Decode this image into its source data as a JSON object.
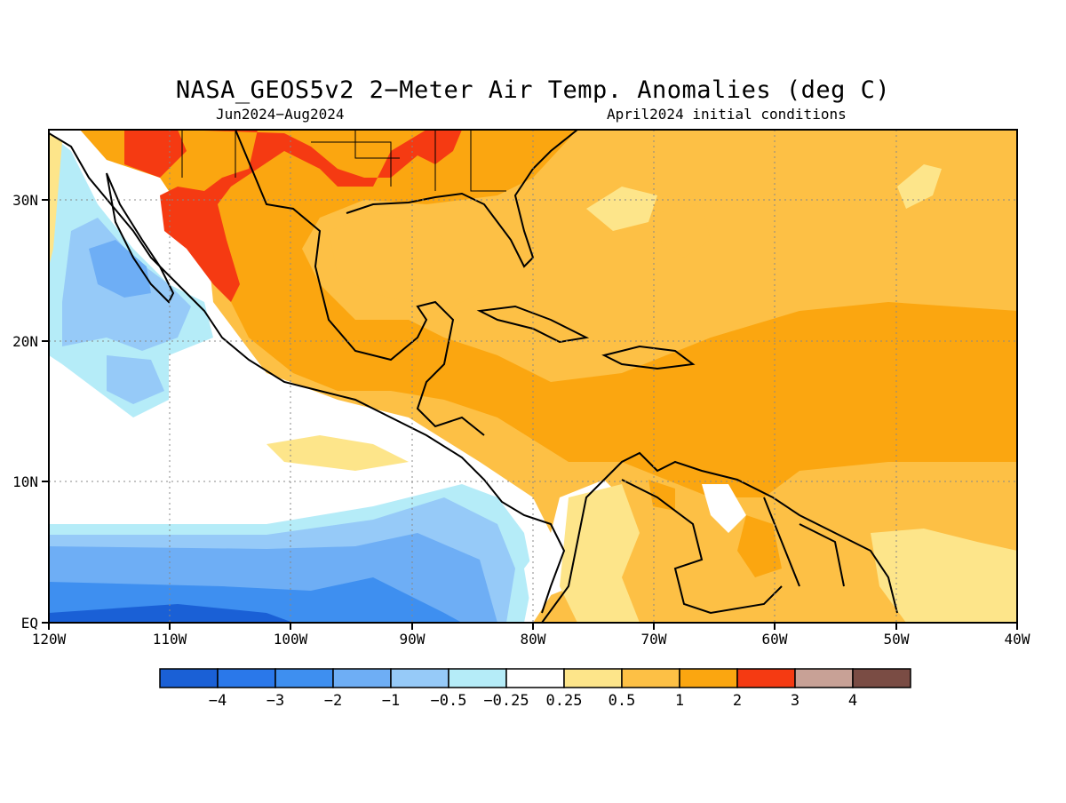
{
  "title": "NASA_GEOS5v2 2−Meter Air Temp. Anomalies (deg C)",
  "subtitle_left": "Jun2024−Aug2024",
  "subtitle_right": "April2024 initial conditions",
  "map": {
    "lon_range": [
      -120,
      -40
    ],
    "lat_range": [
      0,
      35
    ],
    "lon_ticks": [
      {
        "value": -120,
        "label": "120W"
      },
      {
        "value": -110,
        "label": "110W"
      },
      {
        "value": -100,
        "label": "100W"
      },
      {
        "value": -90,
        "label": "90W"
      },
      {
        "value": -80,
        "label": "80W"
      },
      {
        "value": -70,
        "label": "70W"
      },
      {
        "value": -60,
        "label": "60W"
      },
      {
        "value": -50,
        "label": "50W"
      },
      {
        "value": -40,
        "label": "40W"
      }
    ],
    "lat_ticks": [
      {
        "value": 30,
        "label": "30N"
      },
      {
        "value": 20,
        "label": "20N"
      },
      {
        "value": 10,
        "label": "10N"
      },
      {
        "value": 0,
        "label": "EQ"
      }
    ],
    "grid": true
  },
  "colorbar": {
    "colors": [
      "#1a60d6",
      "#2a78ea",
      "#3e8ff0",
      "#6eaef5",
      "#96caf8",
      "#b5ecf8",
      "#ffffff",
      "#fde58a",
      "#fdc045",
      "#fba610",
      "#f53a12",
      "#c8a196",
      "#7a4c44"
    ],
    "labels": [
      "−4",
      "−3",
      "−2",
      "−1",
      "−0.5",
      "−0.25",
      "0.25",
      "0.5",
      "1",
      "2",
      "3",
      "4"
    ]
  }
}
